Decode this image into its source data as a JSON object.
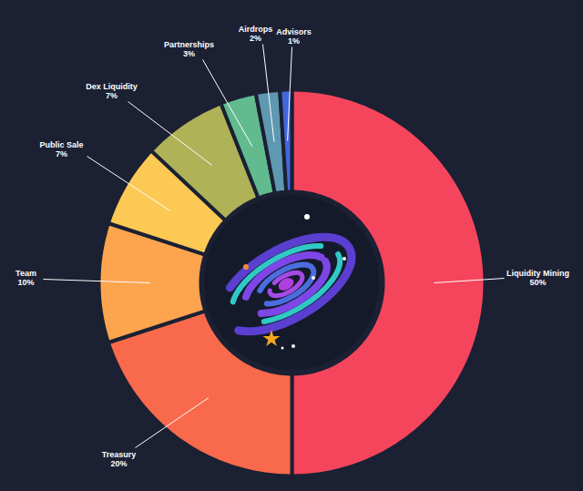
{
  "chart_data": {
    "type": "donut",
    "categories": [
      "Liquidity Mining",
      "Treasury",
      "Team",
      "Public Sale",
      "Dex Liquidity",
      "Partnerships",
      "Airdrops",
      "Advisors"
    ],
    "values": [
      50,
      20,
      10,
      7,
      7,
      3,
      2,
      1
    ],
    "value_labels": [
      "50%",
      "20%",
      "10%",
      "7%",
      "7%",
      "3%",
      "2%",
      "1%"
    ],
    "colors": [
      "#f5455c",
      "#f86a4b",
      "#fca44e",
      "#fdc955",
      "#afb257",
      "#62bb8f",
      "#5f98b1",
      "#4466dd"
    ],
    "data_labels": true
  }
}
